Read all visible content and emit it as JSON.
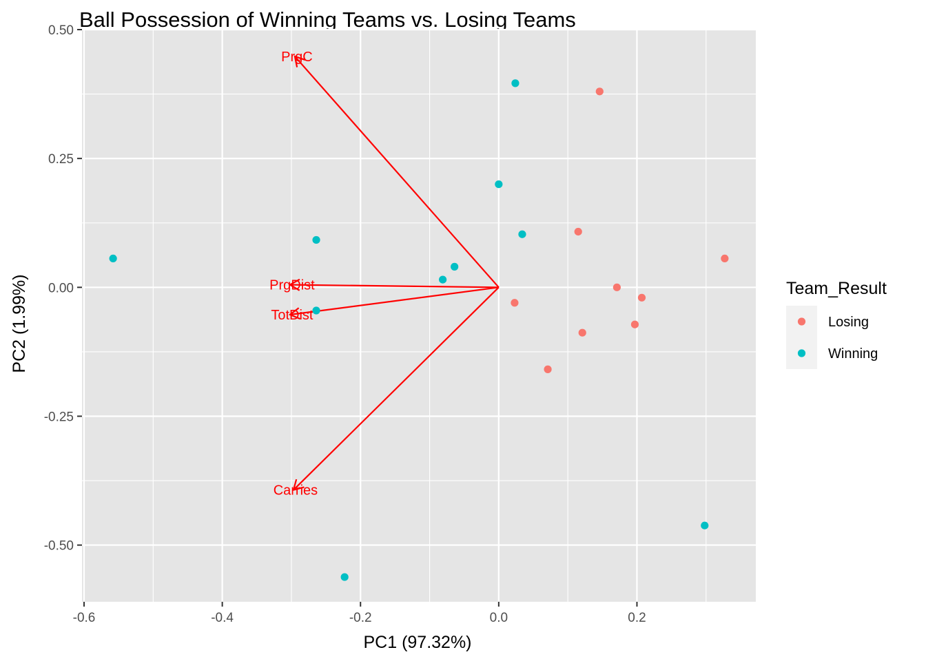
{
  "chart_data": {
    "type": "scatter",
    "title": "Ball Possession of Winning Teams vs. Losing Teams",
    "xlabel": "PC1 (97.32%)",
    "ylabel": "PC2 (1.99%)",
    "xlim": [
      -0.603,
      0.372
    ],
    "ylim": [
      -0.61,
      0.5
    ],
    "x_ticks": [
      -0.6,
      -0.4,
      -0.2,
      0.0,
      0.2
    ],
    "x_tick_labels": [
      "-0.6",
      "-0.4",
      "-0.2",
      "0.0",
      "0.2"
    ],
    "y_ticks": [
      -0.5,
      -0.25,
      0.0,
      0.25,
      0.5
    ],
    "y_tick_labels": [
      "-0.50",
      "-0.25",
      "0.00",
      "0.25",
      "0.50"
    ],
    "grid": true,
    "background": "#e5e5e5",
    "legend": {
      "title": "Team_Result",
      "position": "right"
    },
    "series": [
      {
        "name": "Losing",
        "color": "#F8766D",
        "points": [
          {
            "x": 0.146,
            "y": 0.38
          },
          {
            "x": 0.115,
            "y": 0.108
          },
          {
            "x": 0.327,
            "y": 0.056
          },
          {
            "x": 0.171,
            "y": 0.0
          },
          {
            "x": 0.207,
            "y": -0.02
          },
          {
            "x": 0.023,
            "y": -0.03
          },
          {
            "x": 0.197,
            "y": -0.072
          },
          {
            "x": 0.121,
            "y": -0.088
          },
          {
            "x": 0.071,
            "y": -0.159
          }
        ]
      },
      {
        "name": "Winning",
        "color": "#00BFC4",
        "points": [
          {
            "x": 0.024,
            "y": 0.396
          },
          {
            "x": 0.0,
            "y": 0.2
          },
          {
            "x": 0.034,
            "y": 0.103
          },
          {
            "x": -0.264,
            "y": 0.092
          },
          {
            "x": -0.558,
            "y": 0.056
          },
          {
            "x": -0.064,
            "y": 0.04
          },
          {
            "x": -0.081,
            "y": 0.015
          },
          {
            "x": -0.264,
            "y": -0.045
          },
          {
            "x": 0.298,
            "y": -0.462
          },
          {
            "x": -0.223,
            "y": -0.562
          }
        ]
      }
    ],
    "loadings": {
      "color": "#FF0000",
      "origin": {
        "x": 0.0,
        "y": 0.0
      },
      "vectors": [
        {
          "name": "PrgC",
          "x": -0.295,
          "y": 0.448
        },
        {
          "name": "PrgDist",
          "x": -0.302,
          "y": 0.005
        },
        {
          "name": "TotDist",
          "x": -0.302,
          "y": -0.053
        },
        {
          "name": "Carries",
          "x": -0.297,
          "y": -0.393
        }
      ]
    }
  }
}
